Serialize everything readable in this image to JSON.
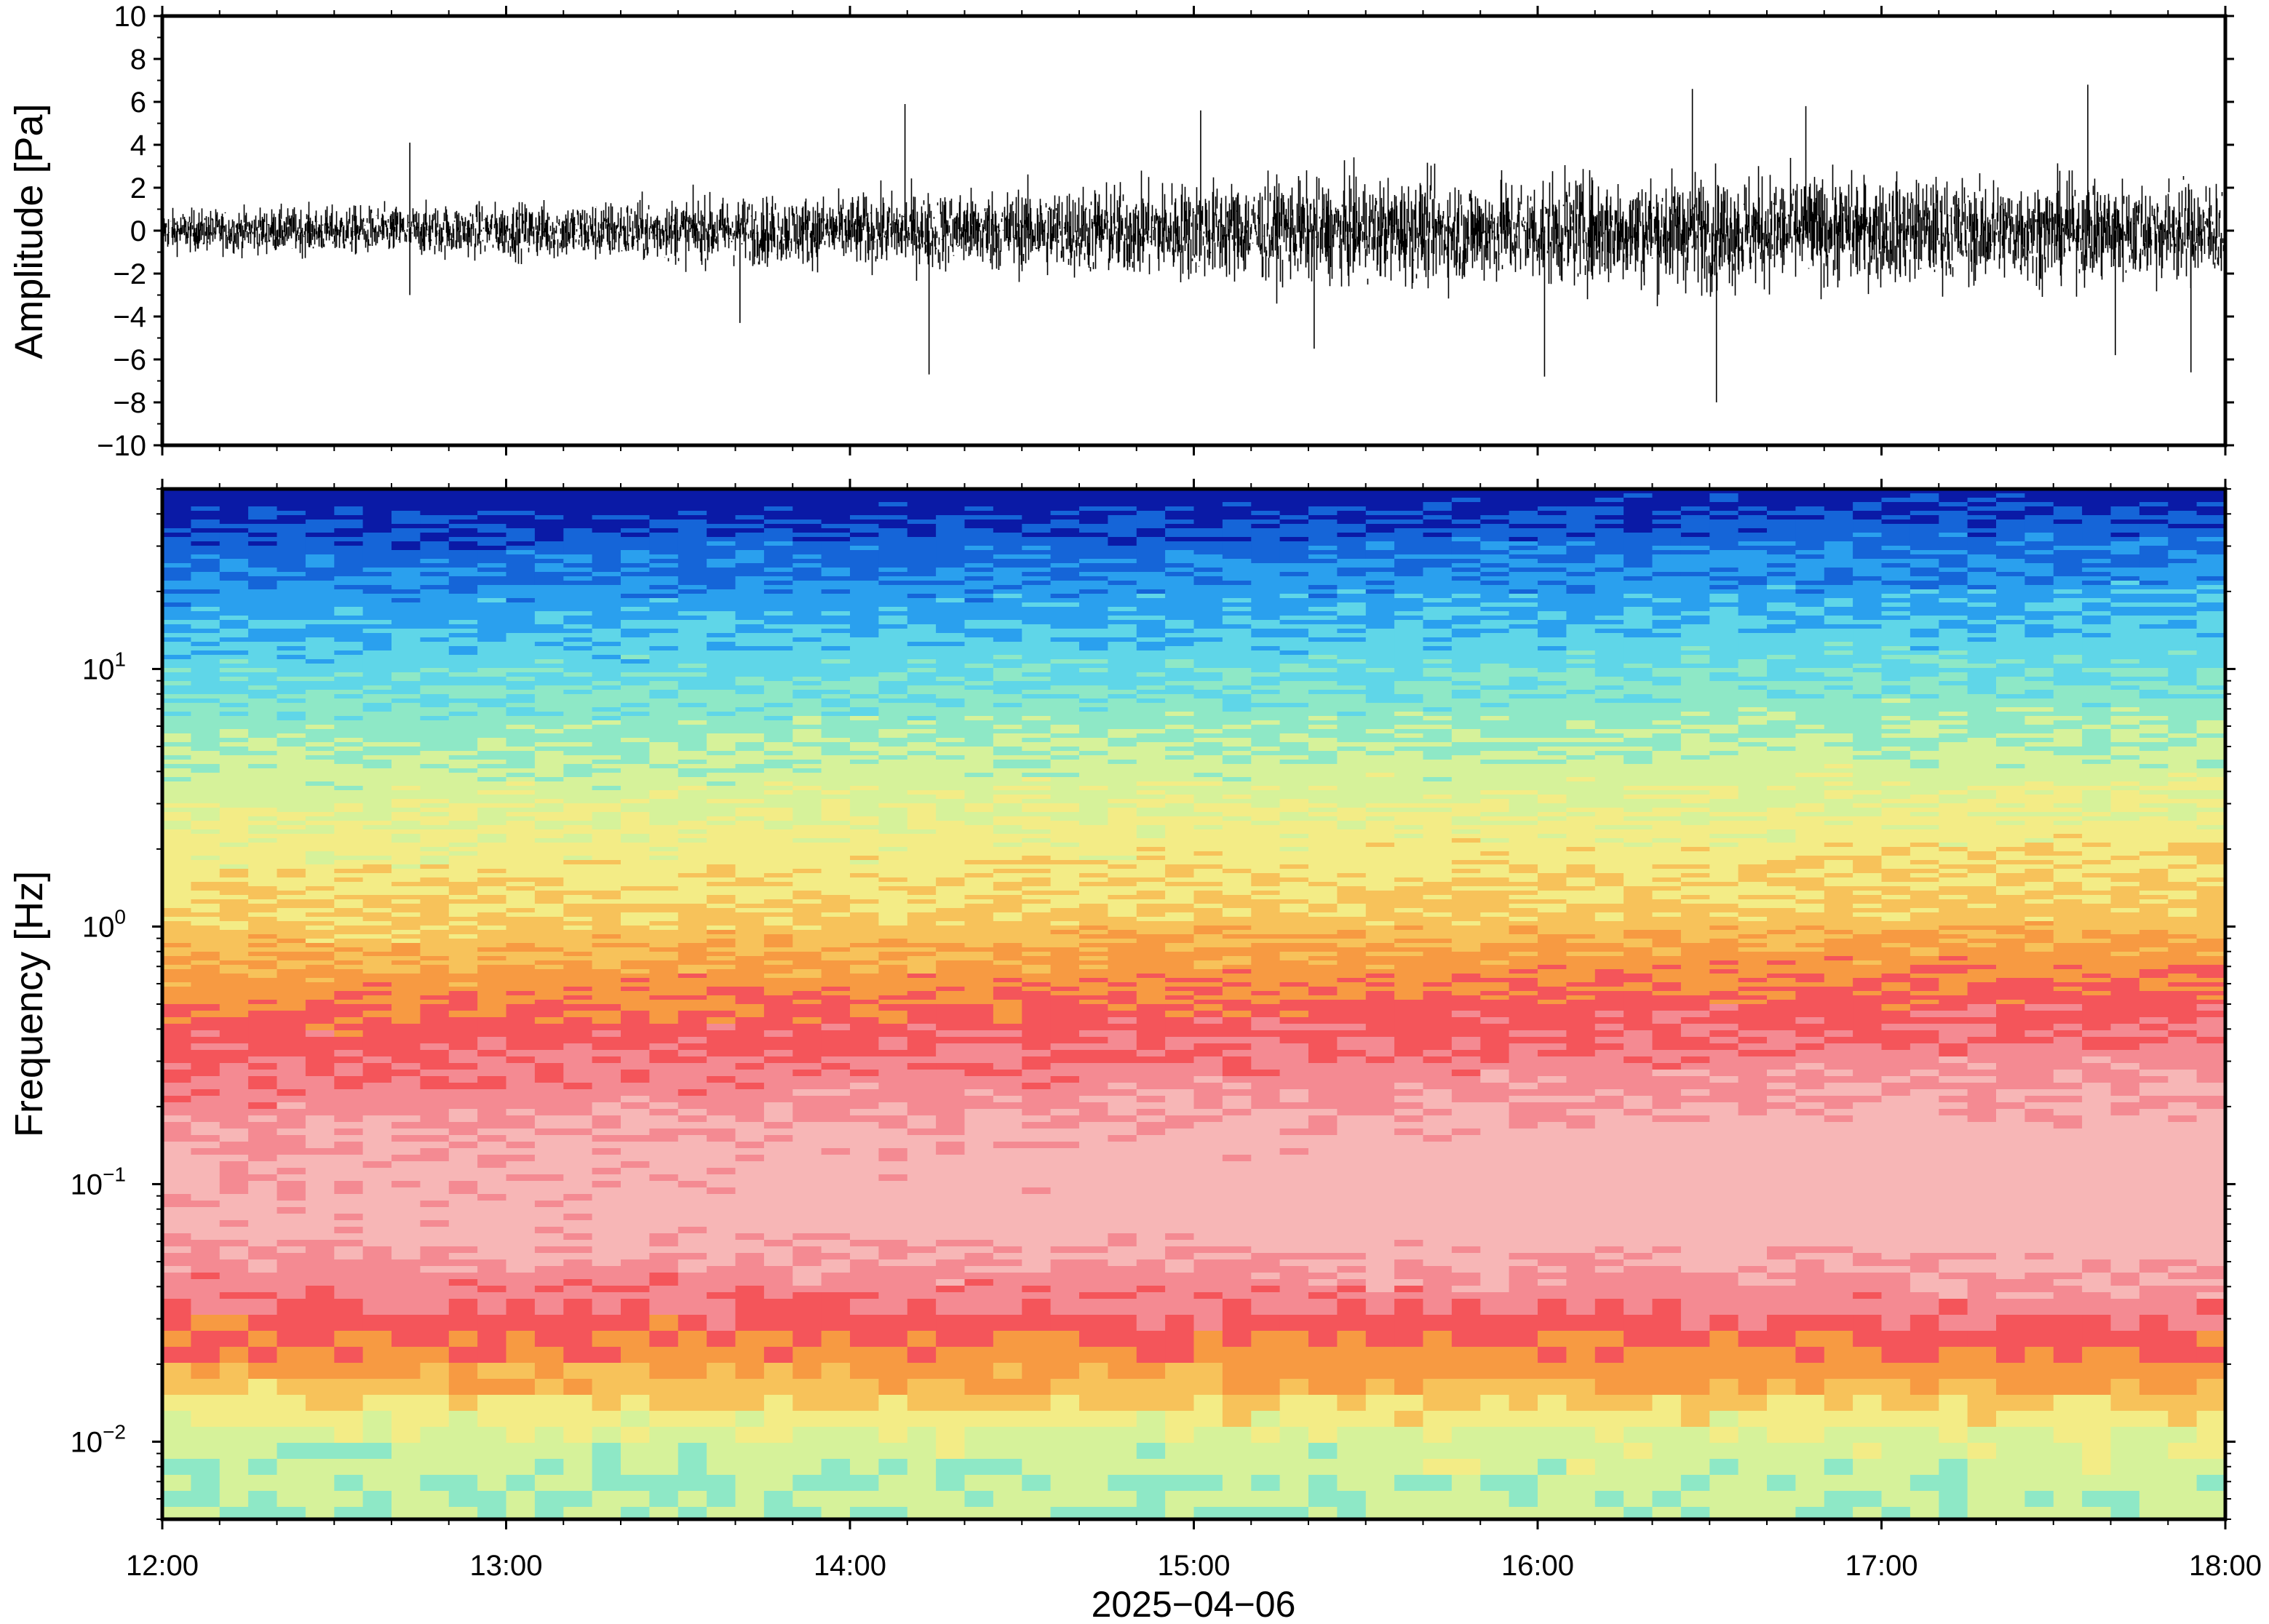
{
  "chart_data": [
    {
      "type": "line",
      "panel": "waveform",
      "ylabel": "Amplitude [Pa]",
      "ylim": [
        -10,
        10
      ],
      "yticks": [
        "10",
        "8",
        "6",
        "4",
        "2",
        "0",
        "−2",
        "−4",
        "−6",
        "−8",
        "−10"
      ],
      "ytick_values": [
        10,
        8,
        6,
        4,
        2,
        0,
        -2,
        -4,
        -6,
        -8,
        -10
      ],
      "xlim": [
        "12:00",
        "18:00"
      ],
      "envelope": {
        "hours": [
          12.0,
          12.5,
          13.0,
          13.5,
          14.0,
          14.5,
          15.0,
          15.5,
          16.0,
          16.5,
          17.0,
          17.5,
          18.0
        ],
        "typical_amplitude": [
          1.2,
          1.4,
          1.6,
          1.9,
          2.1,
          2.5,
          2.9,
          3.0,
          3.2,
          3.4,
          3.1,
          3.0,
          3.0
        ]
      },
      "spikes": [
        {
          "hour": 12.72,
          "value": 4.1
        },
        {
          "hour": 12.72,
          "value": -3.0
        },
        {
          "hour": 14.16,
          "value": 5.9
        },
        {
          "hour": 14.23,
          "value": -6.7
        },
        {
          "hour": 15.02,
          "value": 5.6
        },
        {
          "hour": 15.35,
          "value": -5.5
        },
        {
          "hour": 16.02,
          "value": -6.8
        },
        {
          "hour": 16.45,
          "value": 6.6
        },
        {
          "hour": 16.52,
          "value": -8.0
        },
        {
          "hour": 16.78,
          "value": 5.8
        },
        {
          "hour": 17.6,
          "value": 6.8
        },
        {
          "hour": 17.68,
          "value": -5.8
        },
        {
          "hour": 17.9,
          "value": -6.6
        },
        {
          "hour": 13.68,
          "value": -4.3
        }
      ]
    },
    {
      "type": "heatmap",
      "panel": "spectrogram",
      "ylabel": "Frequency [Hz]",
      "yscale": "log",
      "ylim": [
        0.005,
        50
      ],
      "yticks": [
        0.01,
        0.1,
        1,
        10
      ],
      "ytick_base": "10",
      "ytick_exponents": [
        "−2",
        "−1",
        "0",
        "1"
      ],
      "xlim": [
        "12:00",
        "18:00"
      ],
      "colormap": [
        "#0a1aa6",
        "#1565d8",
        "#2aa0ee",
        "#5fd6e8",
        "#8ee8c6",
        "#d6f29a",
        "#f3ec86",
        "#f7c25a",
        "#f79a42",
        "#f4555a",
        "#f48a92",
        "#f7b6b6"
      ],
      "relative_level_by_frequency": {
        "freq": [
          50,
          30,
          10,
          3,
          1,
          0.4,
          0.15,
          0.07,
          0.035,
          0.02,
          0.01,
          0.005
        ],
        "level": [
          0.0,
          0.12,
          0.3,
          0.48,
          0.6,
          0.78,
          0.92,
          0.95,
          0.82,
          0.7,
          0.45,
          0.4
        ]
      }
    }
  ],
  "x_axis": {
    "ticks": [
      "12:00",
      "13:00",
      "14:00",
      "15:00",
      "16:00",
      "17:00",
      "18:00"
    ],
    "tick_hours": [
      12,
      13,
      14,
      15,
      16,
      17,
      18
    ],
    "date_label": "2025−04−06"
  },
  "colors": {
    "frame": "#000000",
    "waveform": "#000000",
    "background": "#ffffff"
  }
}
